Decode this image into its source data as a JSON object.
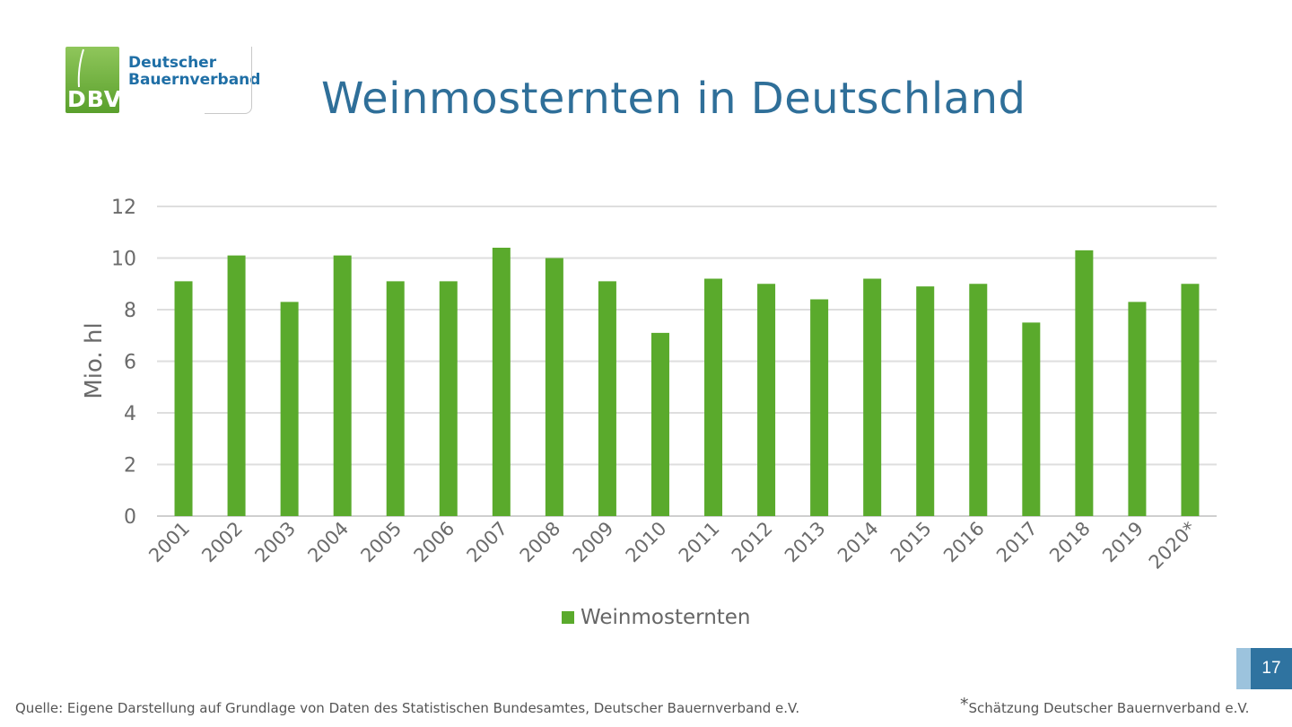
{
  "logo": {
    "mark": "DBV",
    "line1": "Deutscher",
    "line2": "Bauernverband"
  },
  "title": "Weinmosternten in Deutschland",
  "chart_data": {
    "type": "bar",
    "title": "",
    "ylabel": "Mio. hl",
    "xlabel": "",
    "ylim": [
      0,
      12
    ],
    "yticks": [
      0,
      2,
      4,
      6,
      8,
      10,
      12
    ],
    "grid": true,
    "legend_position": "bottom",
    "categories": [
      "2001",
      "2002",
      "2003",
      "2004",
      "2005",
      "2006",
      "2007",
      "2008",
      "2009",
      "2010",
      "2011",
      "2012",
      "2013",
      "2014",
      "2015",
      "2016",
      "2017",
      "2018",
      "2019",
      "2020*"
    ],
    "series": [
      {
        "name": "Weinmosternten",
        "color": "#5aaa2c",
        "values": [
          9.1,
          10.1,
          8.3,
          10.1,
          9.1,
          9.1,
          10.4,
          10.0,
          9.1,
          7.1,
          9.2,
          9.0,
          8.4,
          9.2,
          8.9,
          9.0,
          7.5,
          10.3,
          8.3,
          9.0
        ]
      }
    ]
  },
  "page_number": "17",
  "source": "Quelle: Eigene Darstellung auf Grundlage von Daten des Statistischen Bundesamtes, Deutscher Bauernverband e.V.",
  "footnote": {
    "marker": "*",
    "text": "Schätzung Deutscher Bauernverband e.V."
  }
}
